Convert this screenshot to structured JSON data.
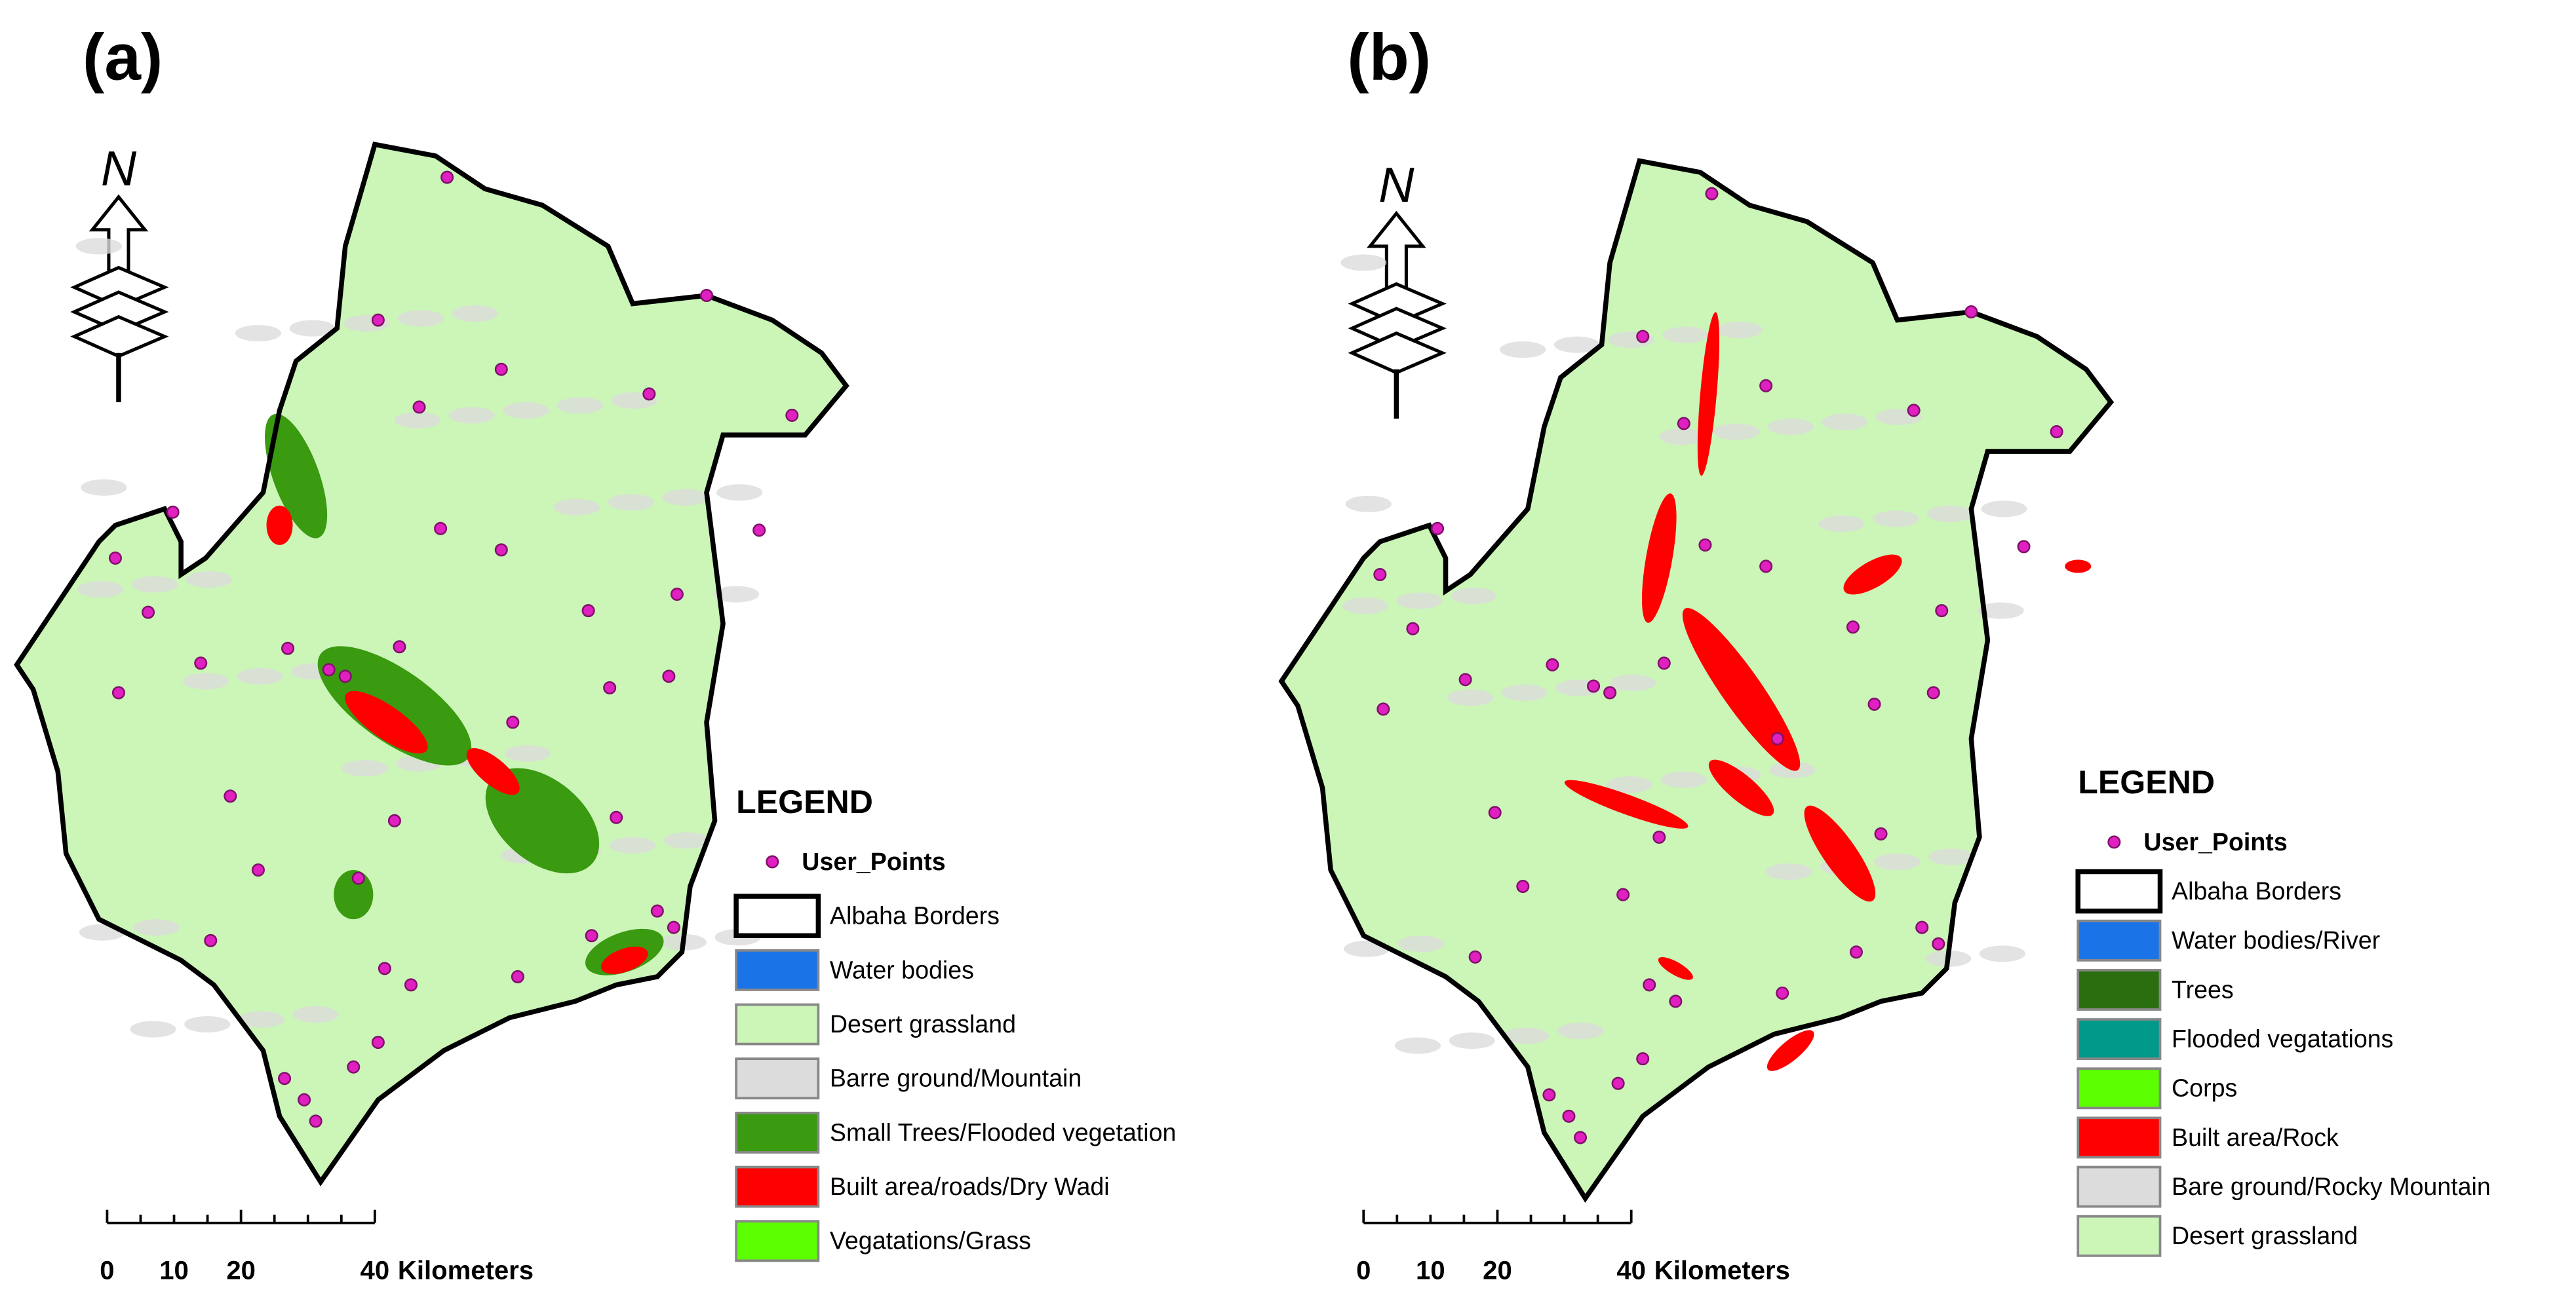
{
  "panels": [
    {
      "label": "(a)",
      "north": "N",
      "legend": {
        "title": "LEGEND",
        "items": [
          {
            "label": "User_Points",
            "swatch": "point",
            "color": "#e020c0"
          },
          {
            "label": "Albaha Borders",
            "swatch": "border",
            "color": "#000000"
          },
          {
            "label": "Water bodies",
            "swatch": "fill",
            "color": "#1a74e8"
          },
          {
            "label": "Desert grassland",
            "swatch": "fill",
            "color": "#ccf5b8"
          },
          {
            "label": "Barre ground/Mountain",
            "swatch": "fill",
            "color": "#dcdcdc"
          },
          {
            "label": "Small Trees/Flooded vegetation",
            "swatch": "fill",
            "color": "#3a9a10"
          },
          {
            "label": "Built area/roads/Dry Wadi",
            "swatch": "fill",
            "color": "#ff0000"
          },
          {
            "label": "Vegatations/Grass",
            "swatch": "fill",
            "color": "#5cff00"
          }
        ]
      },
      "scale": {
        "ticks": [
          "0",
          "10",
          "20",
          "40"
        ],
        "unit": "Kilometers"
      }
    },
    {
      "label": "(b)",
      "north": "N",
      "legend": {
        "title": "LEGEND",
        "items": [
          {
            "label": "User_Points",
            "swatch": "point",
            "color": "#e020c0"
          },
          {
            "label": "Albaha Borders",
            "swatch": "border",
            "color": "#000000"
          },
          {
            "label": "Water bodies/River",
            "swatch": "fill",
            "color": "#1a74e8"
          },
          {
            "label": "Trees",
            "swatch": "fill",
            "color": "#2a6e10"
          },
          {
            "label": "Flooded vegatations",
            "swatch": "fill",
            "color": "#00998a"
          },
          {
            "label": "Corps",
            "swatch": "fill",
            "color": "#5cff00"
          },
          {
            "label": "Built area/Rock",
            "swatch": "fill",
            "color": "#ff0000"
          },
          {
            "label": "Bare ground/Rocky Mountain",
            "swatch": "fill",
            "color": "#dcdcdc"
          },
          {
            "label": "Desert grassland",
            "swatch": "fill",
            "color": "#ccf5b8"
          }
        ]
      },
      "scale": {
        "ticks": [
          "0",
          "10",
          "20",
          "40"
        ],
        "unit": "Kilometers"
      }
    }
  ]
}
